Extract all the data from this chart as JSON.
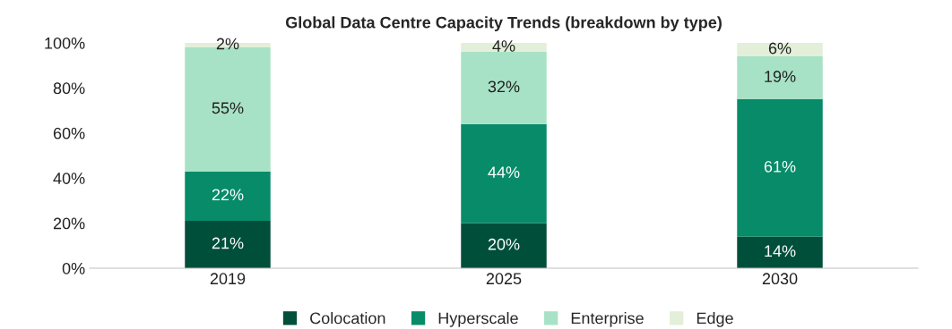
{
  "chart_data": {
    "type": "bar",
    "stacked": true,
    "title": "Global Data Centre Capacity Trends (breakdown by type)",
    "categories": [
      "2019",
      "2025",
      "2030"
    ],
    "series": [
      {
        "name": "Colocation",
        "color": "#004f3b",
        "values": [
          21,
          20,
          14
        ],
        "value_labels": [
          "21%",
          "20%",
          "14%"
        ]
      },
      {
        "name": "Hyperscale",
        "color": "#078b69",
        "values": [
          22,
          44,
          61
        ],
        "value_labels": [
          "22%",
          "44%",
          "61%"
        ]
      },
      {
        "name": "Enterprise",
        "color": "#a8e2c6",
        "values": [
          55,
          32,
          19
        ],
        "value_labels": [
          "55%",
          "32%",
          "19%"
        ]
      },
      {
        "name": "Edge",
        "color": "#e3efd9",
        "values": [
          2,
          4,
          6
        ],
        "value_labels": [
          "2%",
          "4%",
          "6%"
        ]
      }
    ],
    "ylim": [
      0,
      100
    ],
    "yticks": [
      {
        "value": 0,
        "label": "0%"
      },
      {
        "value": 20,
        "label": "20%"
      },
      {
        "value": 40,
        "label": "40%"
      },
      {
        "value": 60,
        "label": "60%"
      },
      {
        "value": 80,
        "label": "80%"
      },
      {
        "value": 100,
        "label": "100%"
      }
    ],
    "grid": false,
    "legend": "bottom"
  }
}
